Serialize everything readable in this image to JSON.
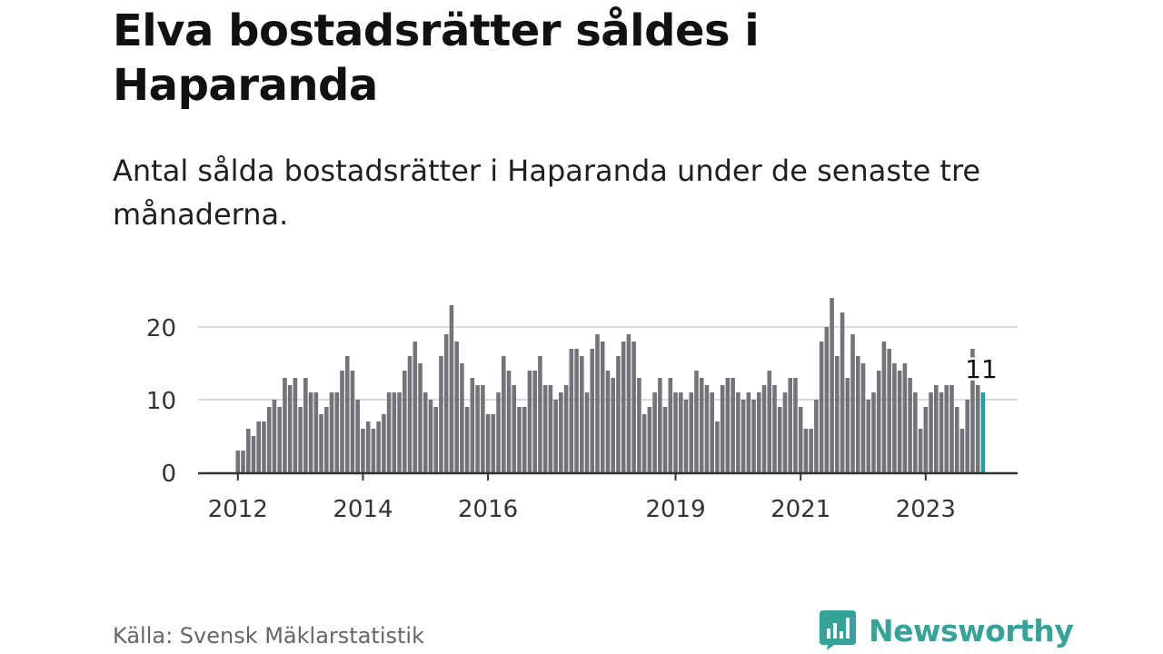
{
  "title": "Elva bostadsrätter såldes i Haparanda",
  "subtitle": "Antal sålda bostadsrätter i Haparanda under de senaste tre månaderna.",
  "source": "Källa: Svensk Mäklarstatistik",
  "brand": {
    "name": "Newsworthy",
    "color": "#36a39b"
  },
  "chart_data": {
    "type": "bar",
    "title": "Elva bostadsrätter såldes i Haparanda",
    "xlabel": "",
    "ylabel": "",
    "ylim": [
      0,
      24
    ],
    "yticks": [
      0,
      10,
      20
    ],
    "grid": true,
    "bar_color": "#74737a",
    "highlight_color": "#20a29a",
    "x_tick_labels": [
      {
        "label": "2012",
        "index": 0
      },
      {
        "label": "2014",
        "index": 24
      },
      {
        "label": "2016",
        "index": 48
      },
      {
        "label": "2019",
        "index": 84
      },
      {
        "label": "2021",
        "index": 108
      },
      {
        "label": "2023",
        "index": 132
      }
    ],
    "annotation": {
      "label": "11",
      "index": 143
    },
    "categories": [
      "2012-01",
      "2012-02",
      "2012-03",
      "2012-04",
      "2012-05",
      "2012-06",
      "2012-07",
      "2012-08",
      "2012-09",
      "2012-10",
      "2012-11",
      "2012-12",
      "2013-01",
      "2013-02",
      "2013-03",
      "2013-04",
      "2013-05",
      "2013-06",
      "2013-07",
      "2013-08",
      "2013-09",
      "2013-10",
      "2013-11",
      "2013-12",
      "2014-01",
      "2014-02",
      "2014-03",
      "2014-04",
      "2014-05",
      "2014-06",
      "2014-07",
      "2014-08",
      "2014-09",
      "2014-10",
      "2014-11",
      "2014-12",
      "2015-01",
      "2015-02",
      "2015-03",
      "2015-04",
      "2015-05",
      "2015-06",
      "2015-07",
      "2015-08",
      "2015-09",
      "2015-10",
      "2015-11",
      "2015-12",
      "2016-01",
      "2016-02",
      "2016-03",
      "2016-04",
      "2016-05",
      "2016-06",
      "2016-07",
      "2016-08",
      "2016-09",
      "2016-10",
      "2016-11",
      "2016-12",
      "2017-01",
      "2017-02",
      "2017-03",
      "2017-04",
      "2017-05",
      "2017-06",
      "2017-07",
      "2017-08",
      "2017-09",
      "2017-10",
      "2017-11",
      "2017-12",
      "2018-01",
      "2018-02",
      "2018-03",
      "2018-04",
      "2018-05",
      "2018-06",
      "2018-07",
      "2018-08",
      "2018-09",
      "2018-10",
      "2018-11",
      "2018-12",
      "2019-01",
      "2019-02",
      "2019-03",
      "2019-04",
      "2019-05",
      "2019-06",
      "2019-07",
      "2019-08",
      "2019-09",
      "2019-10",
      "2019-11",
      "2019-12",
      "2020-01",
      "2020-02",
      "2020-03",
      "2020-04",
      "2020-05",
      "2020-06",
      "2020-07",
      "2020-08",
      "2020-09",
      "2020-10",
      "2020-11",
      "2020-12",
      "2021-01",
      "2021-02",
      "2021-03",
      "2021-04",
      "2021-05",
      "2021-06",
      "2021-07",
      "2021-08",
      "2021-09",
      "2021-10",
      "2021-11",
      "2021-12",
      "2022-01",
      "2022-02",
      "2022-03",
      "2022-04",
      "2022-05",
      "2022-06",
      "2022-07",
      "2022-08",
      "2022-09",
      "2022-10",
      "2022-11",
      "2022-12",
      "2023-01",
      "2023-02",
      "2023-03",
      "2023-04",
      "2023-05",
      "2023-06",
      "2023-07",
      "2023-08",
      "2023-09",
      "2023-10",
      "2023-11",
      "2023-12"
    ],
    "values": [
      3,
      3,
      6,
      5,
      7,
      7,
      9,
      10,
      9,
      13,
      12,
      13,
      9,
      13,
      11,
      11,
      8,
      9,
      11,
      11,
      14,
      16,
      14,
      10,
      6,
      7,
      6,
      7,
      8,
      11,
      11,
      11,
      14,
      16,
      18,
      15,
      11,
      10,
      9,
      16,
      19,
      23,
      18,
      15,
      9,
      13,
      12,
      12,
      8,
      8,
      11,
      16,
      14,
      12,
      9,
      9,
      14,
      14,
      16,
      12,
      12,
      10,
      11,
      12,
      17,
      17,
      16,
      11,
      17,
      19,
      18,
      14,
      13,
      16,
      18,
      19,
      18,
      13,
      8,
      9,
      11,
      13,
      9,
      13,
      11,
      11,
      10,
      11,
      14,
      13,
      12,
      11,
      7,
      12,
      13,
      13,
      11,
      10,
      11,
      10,
      11,
      12,
      14,
      12,
      9,
      11,
      13,
      13,
      9,
      6,
      6,
      10,
      18,
      20,
      24,
      16,
      22,
      13,
      19,
      16,
      15,
      10,
      11,
      14,
      18,
      17,
      15,
      14,
      15,
      13,
      11,
      6,
      9,
      11,
      12,
      11,
      12,
      12,
      9,
      6,
      10,
      17,
      12,
      11
    ]
  }
}
